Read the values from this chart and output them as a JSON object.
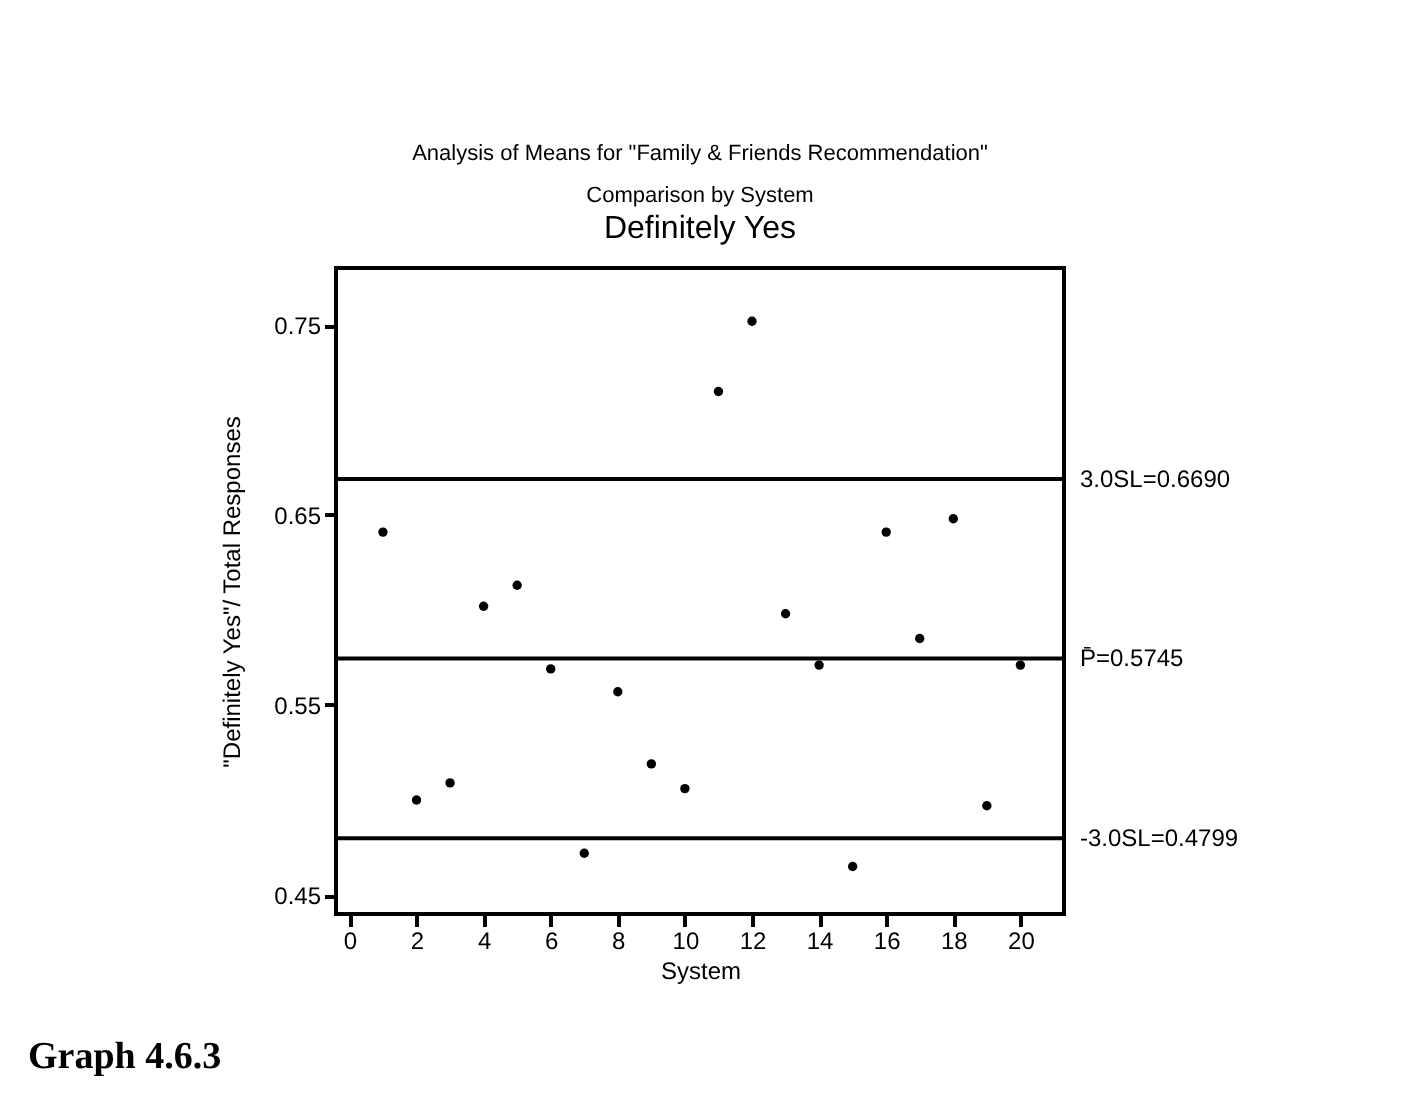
{
  "chart_data": {
    "type": "scatter",
    "title": "Analysis of Means for \"Family & Friends Recommendation\"\nComparison by System",
    "subtitle": "Definitely Yes",
    "xlabel": "System",
    "ylabel": "\"Definitely Yes\"/ Total Responses",
    "x": [
      1,
      2,
      3,
      4,
      5,
      6,
      7,
      8,
      9,
      10,
      11,
      12,
      13,
      14,
      15,
      16,
      17,
      18,
      19,
      20
    ],
    "values": [
      0.641,
      0.5,
      0.509,
      0.602,
      0.613,
      0.569,
      0.472,
      0.557,
      0.519,
      0.506,
      0.715,
      0.752,
      0.598,
      0.571,
      0.465,
      0.641,
      0.585,
      0.648,
      0.497,
      0.571
    ],
    "color": "#000000",
    "marker": "circle",
    "xlim": [
      -0.4,
      21.3
    ],
    "xticks": [
      0,
      2,
      4,
      6,
      8,
      10,
      12,
      14,
      16,
      18,
      20
    ],
    "ylim": [
      0.44,
      0.78
    ],
    "yticks": [
      0.45,
      0.55,
      0.65,
      0.75
    ],
    "ref_lines": [
      {
        "axis": "y",
        "value": 0.669,
        "label": "3.0SL=0.6690"
      },
      {
        "axis": "y",
        "value": 0.5745,
        "label": "P̄=0.5745"
      },
      {
        "axis": "y",
        "value": 0.4799,
        "label": "-3.0SL=0.4799"
      }
    ],
    "annotations": [
      "Graph 4.6.3"
    ],
    "grid": false
  }
}
